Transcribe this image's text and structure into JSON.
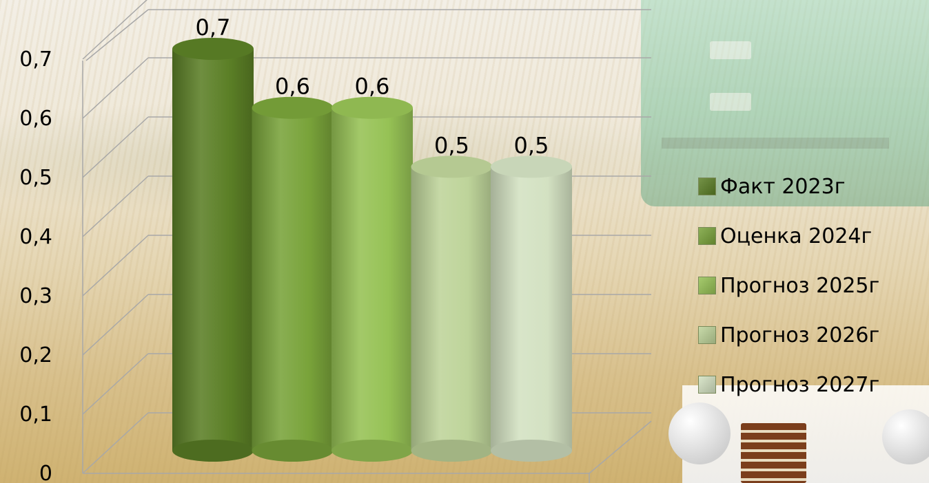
{
  "chart_data": {
    "type": "bar",
    "title": "",
    "xlabel": "",
    "ylabel": "",
    "ylim": [
      0,
      0.7
    ],
    "yticks": [
      "0",
      "0,1",
      "0,2",
      "0,3",
      "0,4",
      "0,5",
      "0,6",
      "0,7"
    ],
    "series": [
      {
        "name": "Факт 2023г",
        "value": 0.7,
        "label": "0,7",
        "color": "#5b7f26"
      },
      {
        "name": "Оценка 2024г",
        "value": 0.6,
        "label": "0,6",
        "color": "#79a33a"
      },
      {
        "name": "Прогноз 2025г",
        "value": 0.6,
        "label": "0,6",
        "color": "#96c255"
      },
      {
        "name": "Прогноз 2026г",
        "value": 0.5,
        "label": "0,5",
        "color": "#bed49a"
      },
      {
        "name": "Прогноз 2027г",
        "value": 0.5,
        "label": "0,5",
        "color": "#d3e1c2"
      }
    ],
    "grid": true,
    "legend_position": "right"
  }
}
